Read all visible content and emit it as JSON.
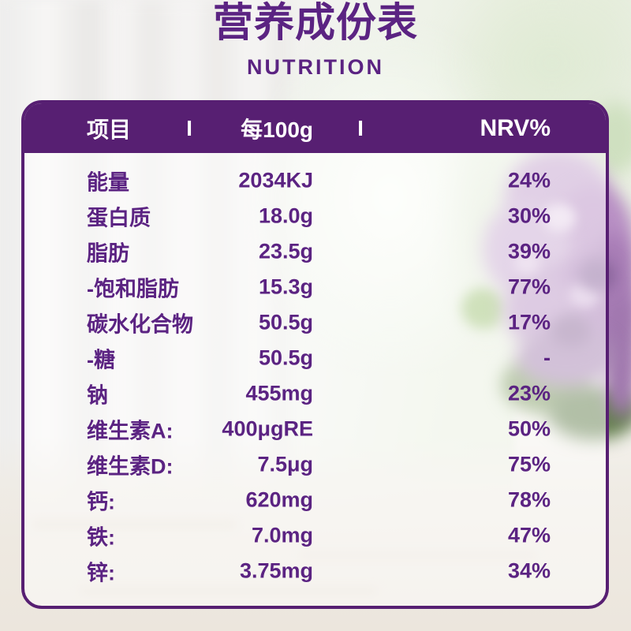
{
  "page": {
    "title": "营养成份表",
    "subtitle": "NUTRITION"
  },
  "table": {
    "header": {
      "col_item": "项目",
      "separator": "I",
      "col_per100g": "每100g",
      "col_nrv": "NRV%"
    },
    "rows": [
      {
        "item": "能量",
        "per100g": "2034KJ",
        "nrv": "24%"
      },
      {
        "item": "蛋白质",
        "per100g": "18.0g",
        "nrv": "30%"
      },
      {
        "item": "脂肪",
        "per100g": "23.5g",
        "nrv": "39%"
      },
      {
        "item": "-饱和脂肪",
        "per100g": "15.3g",
        "nrv": "77%"
      },
      {
        "item": "碳水化合物",
        "per100g": "50.5g",
        "nrv": "17%"
      },
      {
        "item": "-糖",
        "per100g": "50.5g",
        "nrv": "-"
      },
      {
        "item": "钠",
        "per100g": "455mg",
        "nrv": "23%"
      },
      {
        "item": "维生素A:",
        "per100g": "400μgRE",
        "nrv": "50%"
      },
      {
        "item": "维生素D:",
        "per100g": "7.5μg",
        "nrv": "75%"
      },
      {
        "item": "钙:",
        "per100g": "620mg",
        "nrv": "78%"
      },
      {
        "item": "铁:",
        "per100g": "7.0mg",
        "nrv": "47%"
      },
      {
        "item": "锌:",
        "per100g": "3.75mg",
        "nrv": "34%"
      }
    ]
  },
  "colors": {
    "purple_dark": "#571F72",
    "purple_text": "#5B2382",
    "header_text": "#FFFFFF"
  }
}
